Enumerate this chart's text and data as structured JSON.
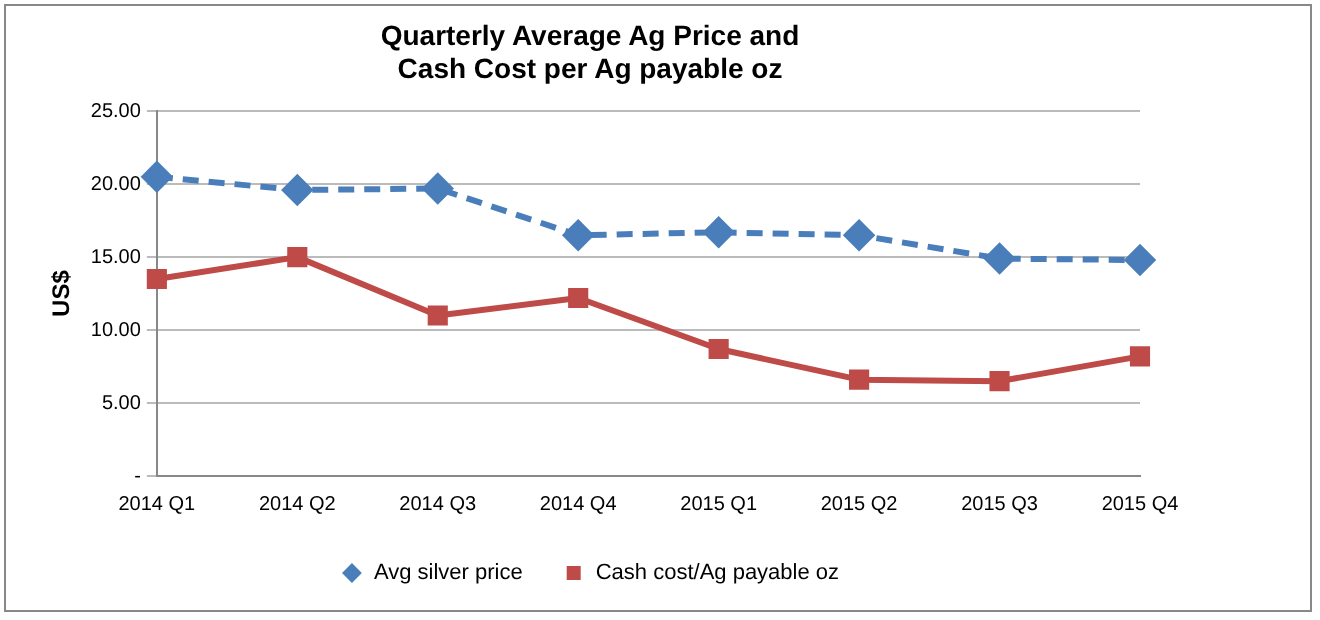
{
  "chart_data": {
    "type": "line",
    "title": "Quarterly Average Ag Price and\nCash Cost per Ag payable oz",
    "ylabel": "US$",
    "categories": [
      "2014 Q1",
      "2014 Q2",
      "2014 Q3",
      "2014 Q4",
      "2015 Q1",
      "2015 Q2",
      "2015 Q3",
      "2015 Q4"
    ],
    "series": [
      {
        "name": "Avg silver price",
        "color": "#4a7ebb",
        "marker": "diamond",
        "line_style": "dashed",
        "values": [
          20.5,
          19.6,
          19.7,
          16.5,
          16.7,
          16.5,
          14.9,
          14.8
        ]
      },
      {
        "name": "Cash cost/Ag payable oz",
        "color": "#be4b48",
        "marker": "square",
        "line_style": "solid",
        "values": [
          13.5,
          15.0,
          11.0,
          12.2,
          8.7,
          6.6,
          6.5,
          8.2
        ]
      }
    ],
    "ylim": [
      0,
      25
    ],
    "yticks": [
      {
        "value": 0,
        "label": "-"
      },
      {
        "value": 5,
        "label": "5.00"
      },
      {
        "value": 10,
        "label": "10.00"
      },
      {
        "value": 15,
        "label": "15.00"
      },
      {
        "value": 20,
        "label": "20.00"
      },
      {
        "value": 25,
        "label": "25.00"
      }
    ],
    "grid": "y",
    "legend": "bottom"
  }
}
